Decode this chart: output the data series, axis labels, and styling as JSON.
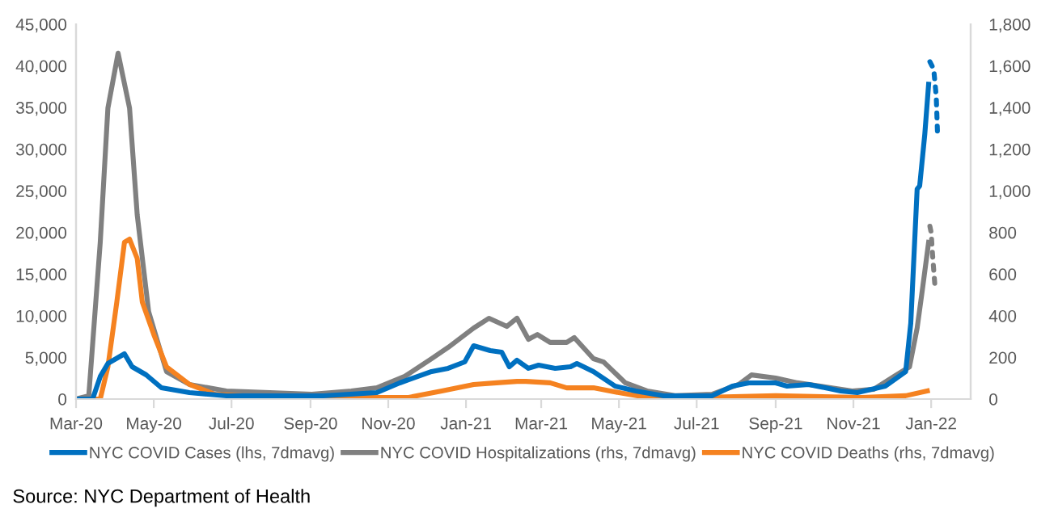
{
  "chart_data": {
    "type": "line",
    "x": [
      "2020-03-01",
      "2020-03-14",
      "2020-03-20",
      "2020-03-26",
      "2020-04-08",
      "2020-04-14",
      "2020-04-25",
      "2020-05-07",
      "2020-05-29",
      "2020-06-27",
      "2020-07-31",
      "2020-09-11",
      "2020-10-23",
      "2020-11-10",
      "2020-12-05",
      "2020-12-18",
      "2020-12-31",
      "2021-01-07",
      "2021-01-20",
      "2021-01-29",
      "2021-02-04",
      "2021-02-10",
      "2021-02-19",
      "2021-02-27",
      "2021-03-12",
      "2021-03-24",
      "2021-03-29",
      "2021-04-11",
      "2021-04-28",
      "2021-05-14",
      "2021-06-05",
      "2021-07-13",
      "2021-07-29",
      "2021-08-11",
      "2021-09-01",
      "2021-09-10",
      "2021-09-27",
      "2021-10-22",
      "2021-11-04",
      "2021-11-26",
      "2021-12-12",
      "2021-12-16",
      "2021-12-21",
      "2021-12-23",
      "2021-12-27",
      "2021-12-30"
    ],
    "series": [
      {
        "name": "NYC COVID Cases (lhs, 7dmavg)",
        "color": "#0070c0",
        "values": [
          0,
          0,
          2700,
          4270,
          5430,
          3880,
          2910,
          1360,
          780,
          390,
          390,
          390,
          780,
          1940,
          3300,
          3690,
          4460,
          6400,
          5820,
          5630,
          3880,
          4660,
          3690,
          4070,
          3690,
          3880,
          4270,
          3300,
          1550,
          970,
          390,
          390,
          1550,
          1940,
          1940,
          1550,
          1750,
          970,
          780,
          1550,
          3300,
          9100,
          25200,
          25600,
          31800,
          37800
        ]
      },
      {
        "color": "#0070c0",
        "line_style": "dotted",
        "x": [
          "2021-12-31",
          "2022-01-03",
          "2022-01-05",
          "2022-01-06"
        ],
        "values": [
          40500,
          39600,
          36300,
          31800
        ]
      },
      {
        "name": "NYC COVID Hospitalizations (rhs, 7dmavg)",
        "color": "#808080",
        "axis": "y2",
        "x": [
          "2020-03-01",
          "2020-03-11",
          "2020-03-20",
          "2020-03-26",
          "2020-04-03",
          "2020-04-12",
          "2020-04-18",
          "2020-04-27",
          "2020-05-11",
          "2020-05-29",
          "2020-06-27",
          "2020-07-31",
          "2020-09-02",
          "2020-10-03",
          "2020-10-23",
          "2020-11-14",
          "2020-12-05",
          "2020-12-18",
          "2021-01-07",
          "2021-01-19",
          "2021-02-02",
          "2021-02-10",
          "2021-02-19",
          "2021-02-26",
          "2021-03-08",
          "2021-03-21",
          "2021-03-27",
          "2021-04-11",
          "2021-04-19",
          "2021-05-06",
          "2021-05-23",
          "2021-06-14",
          "2021-07-13",
          "2021-08-03",
          "2021-08-13",
          "2021-09-01",
          "2021-09-18",
          "2021-10-06",
          "2021-10-31",
          "2021-11-17",
          "2021-12-03",
          "2021-12-15",
          "2021-12-21",
          "2021-12-25",
          "2021-12-30"
        ],
        "values": [
          0,
          16,
          753,
          1397,
          1661,
          1397,
          885,
          419,
          132,
          70,
          39,
          31,
          23,
          39,
          54,
          109,
          194,
          248,
          341,
          388,
          349,
          388,
          287,
          310,
          272,
          272,
          295,
          194,
          178,
          78,
          39,
          16,
          23,
          70,
          116,
          101,
          78,
          62,
          39,
          47,
          109,
          155,
          341,
          520,
          753
        ]
      },
      {
        "color": "#808080",
        "axis": "y2",
        "line_style": "dotted",
        "x": [
          "2021-12-31",
          "2022-01-01",
          "2022-01-02",
          "2022-01-03",
          "2022-01-04"
        ],
        "values": [
          830,
          800,
          700,
          620,
          540
        ]
      },
      {
        "name": "NYC COVID Deaths (rhs, 7dmavg)",
        "color": "#f58220",
        "axis": "y2",
        "x": [
          "2020-03-01",
          "2020-03-20",
          "2020-03-26",
          "2020-04-02",
          "2020-04-08",
          "2020-04-12",
          "2020-04-18",
          "2020-04-22",
          "2020-05-01",
          "2020-05-11",
          "2020-05-29",
          "2020-06-18",
          "2020-07-31",
          "2020-10-23",
          "2020-11-17",
          "2020-12-13",
          "2021-01-07",
          "2021-01-25",
          "2021-02-10",
          "2021-02-17",
          "2021-03-08",
          "2021-03-21",
          "2021-04-11",
          "2021-05-01",
          "2021-05-23",
          "2021-07-04",
          "2021-09-01",
          "2021-11-08",
          "2021-12-12",
          "2021-12-29"
        ],
        "values": [
          0,
          0,
          155,
          466,
          753,
          768,
          675,
          466,
          310,
          155,
          70,
          23,
          8,
          8,
          8,
          39,
          70,
          78,
          85,
          85,
          78,
          54,
          54,
          31,
          8,
          8,
          16,
          8,
          16,
          39
        ]
      }
    ],
    "xlim": [
      "2020-03-01",
      "2022-02-01"
    ],
    "xticks": [
      {
        "value": "2020-03-01",
        "label": "Mar-20"
      },
      {
        "value": "2020-05-01",
        "label": "May-20"
      },
      {
        "value": "2020-07-01",
        "label": "Jul-20"
      },
      {
        "value": "2020-09-01",
        "label": "Sep-20"
      },
      {
        "value": "2020-11-01",
        "label": "Nov-20"
      },
      {
        "value": "2021-01-01",
        "label": "Jan-21"
      },
      {
        "value": "2021-03-01",
        "label": "Mar-21"
      },
      {
        "value": "2021-05-01",
        "label": "May-21"
      },
      {
        "value": "2021-07-01",
        "label": "Jul-21"
      },
      {
        "value": "2021-09-01",
        "label": "Sep-21"
      },
      {
        "value": "2021-11-01",
        "label": "Nov-21"
      },
      {
        "value": "2022-01-01",
        "label": "Jan-22"
      }
    ],
    "ylim": [
      0,
      45000
    ],
    "yticks": [
      0,
      {
        "value": 5000,
        "label": "5,000"
      },
      {
        "value": 10000,
        "label": "10,000"
      },
      {
        "value": 15000,
        "label": "15,000"
      },
      {
        "value": 20000,
        "label": "20,000"
      },
      {
        "value": 25000,
        "label": "25,000"
      },
      {
        "value": 30000,
        "label": "30,000"
      },
      {
        "value": 35000,
        "label": "35,000"
      },
      {
        "value": 40000,
        "label": "40,000"
      },
      {
        "value": 45000,
        "label": "45,000"
      }
    ],
    "y2lim": [
      0,
      1800
    ],
    "y2ticks": [
      0,
      200,
      400,
      600,
      800,
      {
        "value": 1000,
        "label": "1,000"
      },
      {
        "value": 1200,
        "label": "1,200"
      },
      {
        "value": 1400,
        "label": "1,400"
      },
      {
        "value": 1600,
        "label": "1,600"
      },
      {
        "value": 1800,
        "label": "1,800"
      }
    ],
    "grid": false,
    "legend": "bottom",
    "line_style": "solid",
    "annotations": [
      "Source: NYC Department of Health"
    ]
  }
}
